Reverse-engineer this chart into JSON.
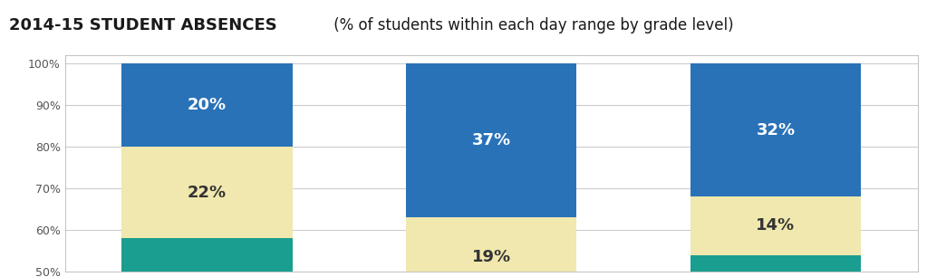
{
  "title_bold": "2014-15 STUDENT ABSENCES",
  "title_regular": " (% of students within each day range by grade level)",
  "segments": {
    "blue": [
      20,
      37,
      32
    ],
    "tan": [
      22,
      19,
      14
    ],
    "teal": [
      58,
      44,
      54
    ]
  },
  "colors": {
    "blue": "#2972b8",
    "tan": "#f0e8ae",
    "teal": "#1a9e8f"
  },
  "labels": {
    "blue": [
      "20%",
      "37%",
      "32%"
    ],
    "tan": [
      "22%",
      "19%",
      "14%"
    ],
    "teal": [
      "",
      "",
      ""
    ]
  },
  "ylim": [
    50,
    102
  ],
  "yticks": [
    50,
    60,
    70,
    80,
    90,
    100
  ],
  "ytick_labels": [
    "50%",
    "60%",
    "70%",
    "80%",
    "90%",
    "100%"
  ],
  "bar_width": 0.6,
  "background_color": "#ffffff",
  "plot_background": "#ffffff",
  "grid_color": "#cccccc",
  "title_bold_fontsize": 13,
  "title_regular_fontsize": 12,
  "label_fontsize_blue": 13,
  "label_fontsize_tan": 13,
  "bar_positions": [
    0.5,
    1.5,
    2.5
  ],
  "xlim": [
    0,
    3
  ]
}
